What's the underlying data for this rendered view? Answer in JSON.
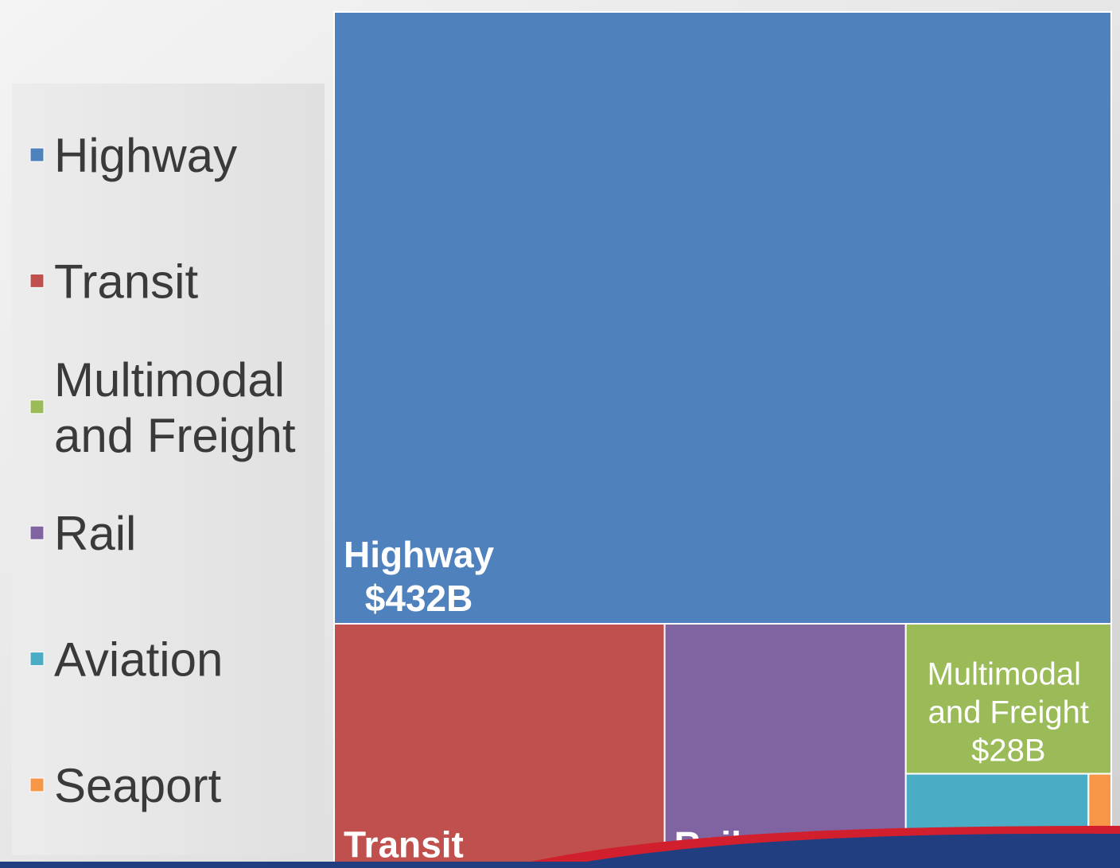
{
  "chart_data": {
    "type": "treemap",
    "categories": [
      "Highway",
      "Transit",
      "Multimodal and Freight",
      "Rail",
      "Aviation",
      "Seaport"
    ],
    "values": [
      432,
      74,
      28,
      54,
      16,
      2
    ],
    "value_labels": [
      "$432B",
      null,
      "$28B",
      null,
      null,
      null
    ],
    "colors": [
      "#4f81bd",
      "#c0504d",
      "#9bbb59",
      "#8064a2",
      "#4bacc6",
      "#f79646"
    ],
    "legend": "left"
  }
}
